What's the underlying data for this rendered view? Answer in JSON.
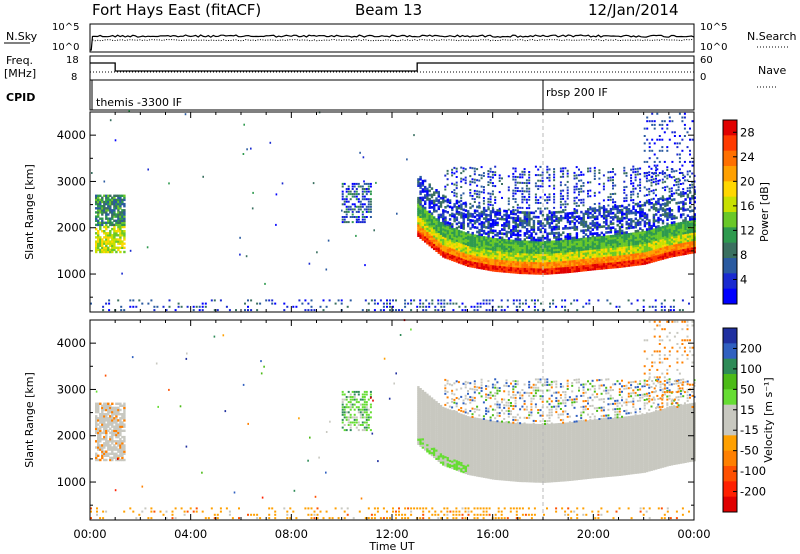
{
  "header": {
    "station": "Fort Hays East (fitACF)",
    "beam": "Beam 13",
    "date": "12/Jan/2014"
  },
  "colors": {
    "axis": "#000000",
    "marker_line": "#b8b8b8"
  },
  "top_panels": {
    "nsky": {
      "left_label": "N.Sky",
      "right_label": "N.Search",
      "left_ticks": [
        "10^5",
        "10^0"
      ],
      "right_ticks": [
        "10^5",
        "10^0"
      ]
    },
    "freq": {
      "left_label_1": "Freq.",
      "left_label_2": "[MHz]",
      "left_ticks": [
        "18",
        "8"
      ],
      "right_ticks": [
        "60",
        "0"
      ],
      "right_label": "Nave",
      "freq_steps": [
        {
          "start_h": 0.0,
          "end_h": 1.0,
          "mhz": 15.5
        },
        {
          "start_h": 1.0,
          "end_h": 13.0,
          "mhz": 11.5
        },
        {
          "start_h": 13.0,
          "end_h": 24.0,
          "mhz": 15.5
        }
      ],
      "freq_range": [
        8,
        18
      ]
    },
    "cpid": {
      "label": "CPID",
      "modes": [
        {
          "name": "themis -3300 IF",
          "start_h": 0.0
        },
        {
          "name": "rbsp 200 IF",
          "start_h": 18.0
        }
      ]
    }
  },
  "chart_data": [
    {
      "type": "heatmap",
      "quantity": "Power",
      "ylabel": "Slant Range [km]",
      "xlabel": "Time UT",
      "x_unit": "UT hours",
      "xlim": [
        0,
        24
      ],
      "ylim": [
        180,
        4500
      ],
      "y_ticks": [
        "1000",
        "2000",
        "3000",
        "4000"
      ],
      "x_ticks": [
        "00:00",
        "04:00",
        "08:00",
        "12:00",
        "16:00",
        "20:00",
        "00:00"
      ],
      "colorbar": {
        "label": "Power [dB]",
        "ticks": [
          "28",
          "24",
          "20",
          "16",
          "12",
          "8",
          "4"
        ],
        "range": [
          0,
          30
        ],
        "colors_top_to_bottom": [
          "#e00000",
          "#ff3a00",
          "#ff7000",
          "#ffa000",
          "#ffd700",
          "#c8e000",
          "#69c828",
          "#2e9a4e",
          "#3a7060",
          "#2a5aa0",
          "#1a2ad0",
          "#0000ff"
        ]
      },
      "regions": [
        {
          "feature": "early echo patch",
          "start_h": 0.2,
          "end_h": 1.4,
          "range_km": [
            1400,
            2600
          ],
          "power_db": [
            8,
            18
          ]
        },
        {
          "feature": "isolated patch",
          "start_h": 10.0,
          "end_h": 11.2,
          "range_km": [
            2100,
            2900
          ],
          "power_db": [
            4,
            10
          ]
        },
        {
          "feature": "main backscatter band",
          "start_h": 13.0,
          "end_h": 24.0,
          "range_km": [
            900,
            2200
          ],
          "power_db": [
            16,
            30
          ]
        },
        {
          "feature": "upper diffuse scatter",
          "start_h": 13.0,
          "end_h": 24.0,
          "range_km": [
            1800,
            3200
          ],
          "power_db": [
            4,
            12
          ]
        },
        {
          "feature": "near-range ground scatter",
          "start_h": 0.0,
          "end_h": 24.0,
          "range_km": [
            200,
            450
          ],
          "power_db": [
            4,
            10
          ]
        }
      ],
      "lower_edge_km": [
        [
          13.0,
          1800
        ],
        [
          14.0,
          1350
        ],
        [
          15.0,
          1150
        ],
        [
          16.0,
          1050
        ],
        [
          17.0,
          1000
        ],
        [
          18.0,
          980
        ],
        [
          19.0,
          1020
        ],
        [
          20.0,
          1080
        ],
        [
          21.0,
          1130
        ],
        [
          22.0,
          1200
        ],
        [
          23.0,
          1350
        ],
        [
          24.0,
          1450
        ]
      ]
    },
    {
      "type": "heatmap",
      "quantity": "Velocity",
      "ylabel": "Slant Range [km]",
      "xlabel": "Time UT",
      "x_unit": "UT hours",
      "xlim": [
        0,
        24
      ],
      "ylim": [
        180,
        4500
      ],
      "y_ticks": [
        "1000",
        "2000",
        "3000",
        "4000"
      ],
      "x_ticks": [
        "00:00",
        "04:00",
        "08:00",
        "12:00",
        "16:00",
        "20:00",
        "00:00"
      ],
      "colorbar": {
        "label": "Velocity [m s⁻¹]",
        "ticks": [
          "200",
          "100",
          "50",
          "15",
          "-15",
          "-50",
          "-100",
          "-200"
        ],
        "colors_top_to_bottom": [
          "#2030a0",
          "#3060c0",
          "#2e8b57",
          "#4cbb17",
          "#66dd33",
          "#c8c8c0",
          "#c8c8c0",
          "#ffa000",
          "#ff8000",
          "#ff5000",
          "#ff2000",
          "#e00000"
        ]
      },
      "regions": [
        {
          "feature": "early echo patch",
          "start_h": 0.2,
          "end_h": 1.4,
          "range_km": [
            1400,
            2600
          ],
          "velocity_ms": [
            -15,
            15
          ]
        },
        {
          "feature": "isolated patch",
          "start_h": 10.0,
          "end_h": 11.2,
          "range_km": [
            2100,
            2900
          ],
          "velocity_ms": [
            15,
            50
          ]
        },
        {
          "feature": "main ground scatter band",
          "start_h": 13.0,
          "end_h": 24.0,
          "range_km": [
            900,
            2200
          ],
          "velocity_ms": [
            -15,
            15
          ]
        },
        {
          "feature": "upper scatter",
          "start_h": 13.0,
          "end_h": 24.0,
          "range_km": [
            1800,
            3200
          ],
          "velocity_ms": [
            -100,
            200
          ]
        },
        {
          "feature": "near-range scatter",
          "start_h": 0.0,
          "end_h": 24.0,
          "range_km": [
            200,
            450
          ],
          "velocity_ms": [
            -100,
            -15
          ]
        }
      ],
      "lower_edge_km": [
        [
          13.0,
          1800
        ],
        [
          14.0,
          1350
        ],
        [
          15.0,
          1150
        ],
        [
          16.0,
          1050
        ],
        [
          17.0,
          1000
        ],
        [
          18.0,
          980
        ],
        [
          19.0,
          1020
        ],
        [
          20.0,
          1080
        ],
        [
          21.0,
          1130
        ],
        [
          22.0,
          1200
        ],
        [
          23.0,
          1350
        ],
        [
          24.0,
          1450
        ]
      ]
    }
  ]
}
